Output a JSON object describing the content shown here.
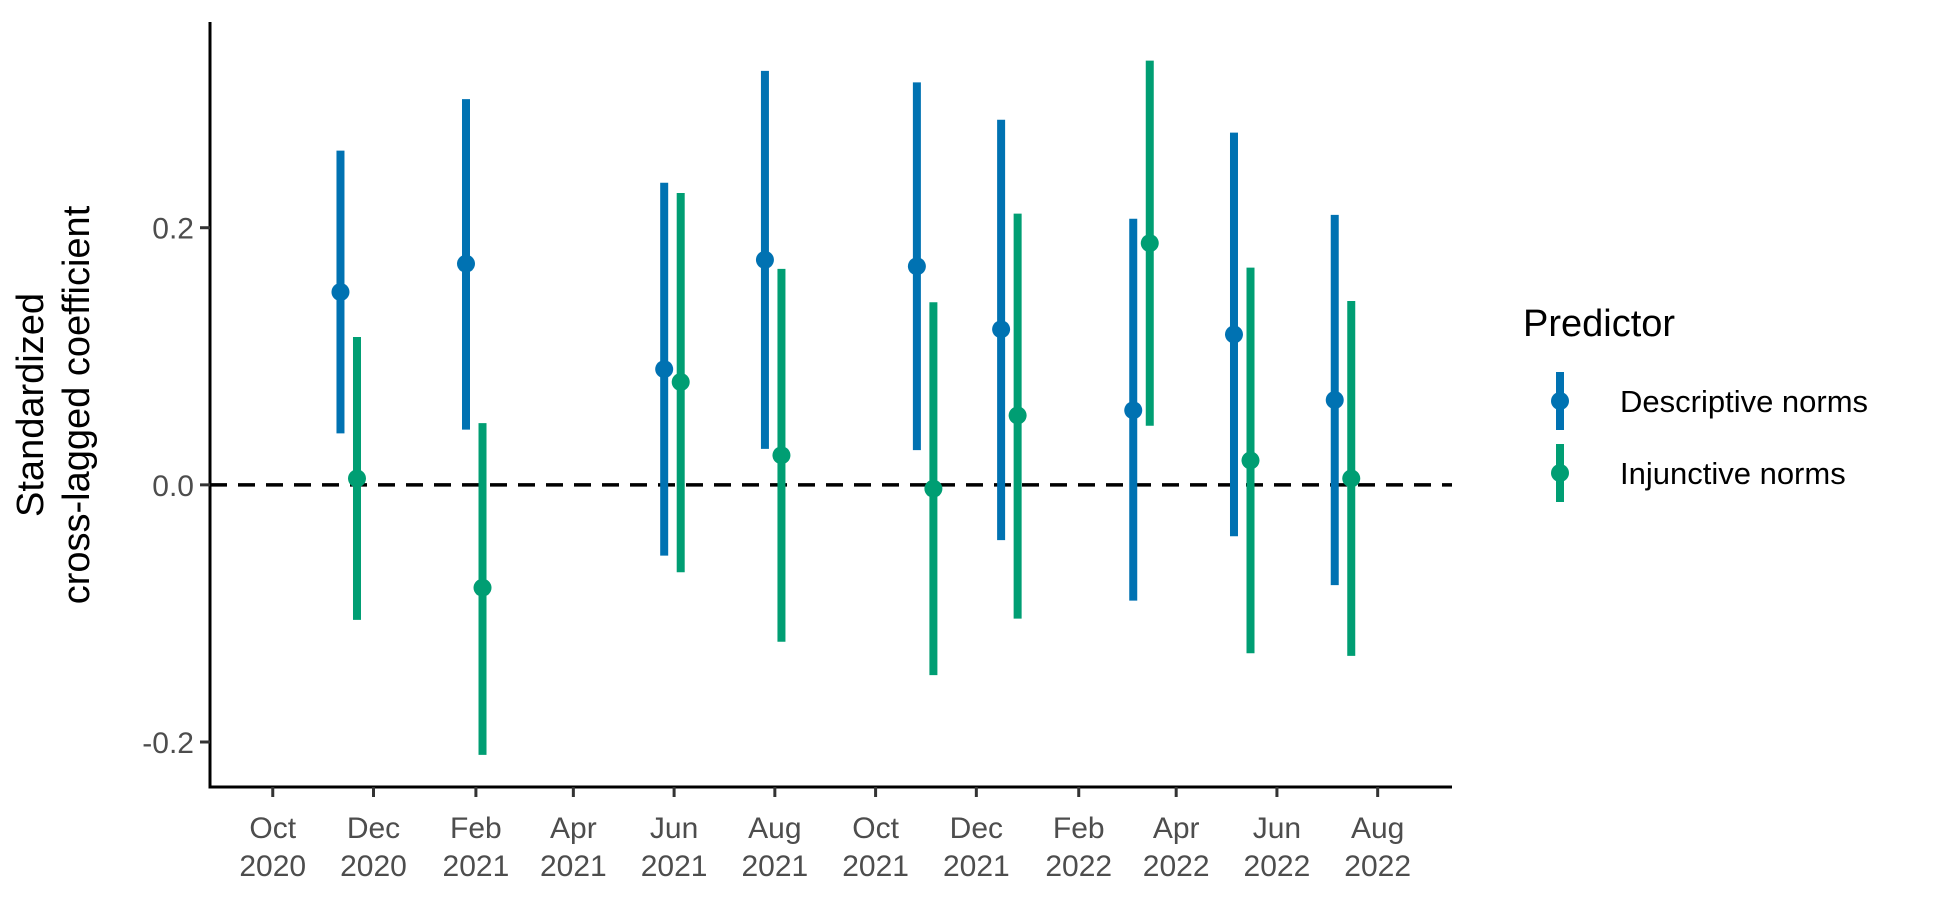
{
  "chart_data": {
    "type": "scatter",
    "subtype": "point-range",
    "title": "",
    "xlabel": "",
    "ylabel_lines": [
      "Standardized",
      "cross-lagged coefficient"
    ],
    "ylim": [
      -0.235,
      0.36
    ],
    "xlim": [
      "2020-08-24",
      "2022-09-15"
    ],
    "grid": false,
    "reference_line": {
      "y": 0,
      "style": "dashed",
      "color": "#000000"
    },
    "y_ticks": [
      {
        "value": -0.2,
        "label": "-0.2"
      },
      {
        "value": 0.0,
        "label": "0.0"
      },
      {
        "value": 0.2,
        "label": "0.2"
      }
    ],
    "x_ticks": [
      {
        "date": "2020-10-01",
        "month": "Oct",
        "year": "2020"
      },
      {
        "date": "2020-12-01",
        "month": "Dec",
        "year": "2020"
      },
      {
        "date": "2021-02-01",
        "month": "Feb",
        "year": "2021"
      },
      {
        "date": "2021-04-01",
        "month": "Apr",
        "year": "2021"
      },
      {
        "date": "2021-06-01",
        "month": "Jun",
        "year": "2021"
      },
      {
        "date": "2021-08-01",
        "month": "Aug",
        "year": "2021"
      },
      {
        "date": "2021-10-01",
        "month": "Oct",
        "year": "2021"
      },
      {
        "date": "2021-12-01",
        "month": "Dec",
        "year": "2021"
      },
      {
        "date": "2022-02-01",
        "month": "Feb",
        "year": "2022"
      },
      {
        "date": "2022-04-01",
        "month": "Apr",
        "year": "2022"
      },
      {
        "date": "2022-06-01",
        "month": "Jun",
        "year": "2022"
      },
      {
        "date": "2022-08-01",
        "month": "Aug",
        "year": "2022"
      }
    ],
    "legend": {
      "title": "Predictor",
      "position": "right"
    },
    "series": [
      {
        "name": "Descriptive norms",
        "color": "#0072B2",
        "points": [
          {
            "x": "2020-11-11",
            "y": 0.15,
            "lower": 0.04,
            "upper": 0.26
          },
          {
            "x": "2021-01-26",
            "y": 0.172,
            "lower": 0.043,
            "upper": 0.3
          },
          {
            "x": "2021-05-26",
            "y": 0.09,
            "lower": -0.055,
            "upper": 0.235
          },
          {
            "x": "2021-07-26",
            "y": 0.175,
            "lower": 0.028,
            "upper": 0.322
          },
          {
            "x": "2021-10-26",
            "y": 0.17,
            "lower": 0.027,
            "upper": 0.313
          },
          {
            "x": "2021-12-16",
            "y": 0.121,
            "lower": -0.043,
            "upper": 0.284
          },
          {
            "x": "2022-03-06",
            "y": 0.058,
            "lower": -0.09,
            "upper": 0.207
          },
          {
            "x": "2022-05-06",
            "y": 0.117,
            "lower": -0.04,
            "upper": 0.274
          },
          {
            "x": "2022-07-06",
            "y": 0.066,
            "lower": -0.078,
            "upper": 0.21
          }
        ]
      },
      {
        "name": "Injunctive norms",
        "color": "#009E73",
        "points": [
          {
            "x": "2020-11-21",
            "y": 0.005,
            "lower": -0.105,
            "upper": 0.115
          },
          {
            "x": "2021-02-05",
            "y": -0.08,
            "lower": -0.21,
            "upper": 0.048
          },
          {
            "x": "2021-06-05",
            "y": 0.08,
            "lower": -0.068,
            "upper": 0.227
          },
          {
            "x": "2021-08-05",
            "y": 0.023,
            "lower": -0.122,
            "upper": 0.168
          },
          {
            "x": "2021-11-05",
            "y": -0.003,
            "lower": -0.148,
            "upper": 0.142
          },
          {
            "x": "2021-12-26",
            "y": 0.054,
            "lower": -0.104,
            "upper": 0.211
          },
          {
            "x": "2022-03-16",
            "y": 0.188,
            "lower": 0.046,
            "upper": 0.33
          },
          {
            "x": "2022-05-16",
            "y": 0.019,
            "lower": -0.131,
            "upper": 0.169
          },
          {
            "x": "2022-07-16",
            "y": 0.005,
            "lower": -0.133,
            "upper": 0.143
          }
        ]
      }
    ]
  }
}
